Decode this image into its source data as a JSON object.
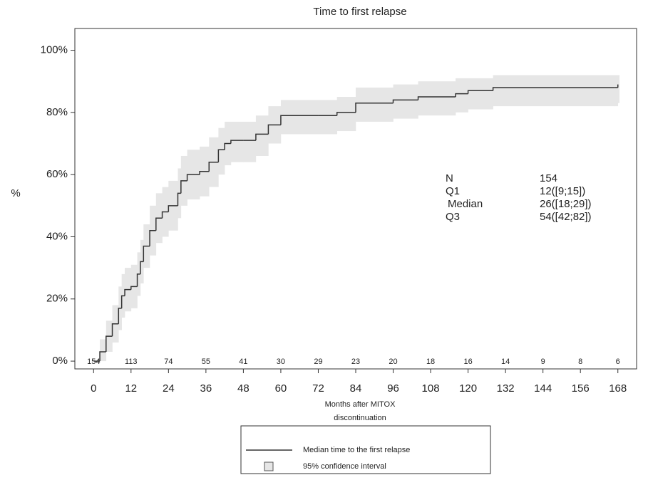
{
  "chart_data": {
    "type": "step",
    "title": "Time to first relapse",
    "ylabel": "%",
    "xlabel": [
      "Months after MITOX",
      "discontinuation"
    ],
    "x": [
      0,
      2,
      4,
      6,
      8,
      9,
      10,
      12,
      14,
      15,
      16,
      18,
      20,
      22,
      24,
      27,
      28,
      30,
      34,
      37,
      40,
      42,
      44,
      48,
      52,
      56,
      60,
      72,
      78,
      84,
      96,
      104,
      116,
      120,
      128,
      167,
      168
    ],
    "series": [
      {
        "name": "Median time to the first relapse",
        "color": "#333333",
        "values": [
          0,
          3,
          8,
          12,
          17,
          21,
          23,
          24,
          28,
          32,
          37,
          42,
          46,
          48,
          50,
          54,
          58,
          60,
          61,
          64,
          68,
          70,
          71,
          71,
          73,
          76,
          79,
          79,
          80,
          83,
          84,
          85,
          86,
          87,
          88,
          88,
          89
        ]
      }
    ],
    "ci": {
      "name": "95% confidence interval",
      "color": "#e6e6e6",
      "lower": [
        0,
        0,
        3,
        6,
        10,
        14,
        16,
        17,
        21,
        25,
        30,
        34,
        38,
        40,
        42,
        46,
        50,
        52,
        53,
        56,
        60,
        63,
        64,
        64,
        66,
        70,
        73,
        73,
        74,
        77,
        78,
        79,
        80,
        81,
        82,
        82,
        83
      ],
      "upper": [
        0,
        7,
        13,
        18,
        24,
        28,
        30,
        31,
        35,
        39,
        44,
        50,
        54,
        56,
        58,
        62,
        66,
        68,
        69,
        72,
        75,
        77,
        77,
        77,
        79,
        82,
        84,
        84,
        85,
        88,
        89,
        90,
        91,
        91,
        92,
        92,
        92
      ]
    },
    "xlim": [
      -6,
      174
    ],
    "xticks": [
      0,
      12,
      24,
      36,
      48,
      60,
      72,
      84,
      96,
      108,
      120,
      132,
      144,
      156,
      168
    ],
    "ylim": [
      -2.5,
      107
    ],
    "yticks": [
      {
        "value": 0,
        "label": "0%"
      },
      {
        "value": 20,
        "label": "20%"
      },
      {
        "value": 40,
        "label": "40%"
      },
      {
        "value": 60,
        "label": "60%"
      },
      {
        "value": 80,
        "label": "80%"
      },
      {
        "value": 100,
        "label": "100%"
      }
    ],
    "at_risk": [
      154,
      113,
      74,
      55,
      41,
      30,
      29,
      23,
      20,
      18,
      16,
      14,
      9,
      8,
      6
    ],
    "stats": [
      [
        "N",
        "154"
      ],
      [
        "Q1",
        "12([9;15])"
      ],
      [
        "Median",
        "26([18;29])"
      ],
      [
        "Q3",
        "54([42;82])"
      ]
    ]
  }
}
